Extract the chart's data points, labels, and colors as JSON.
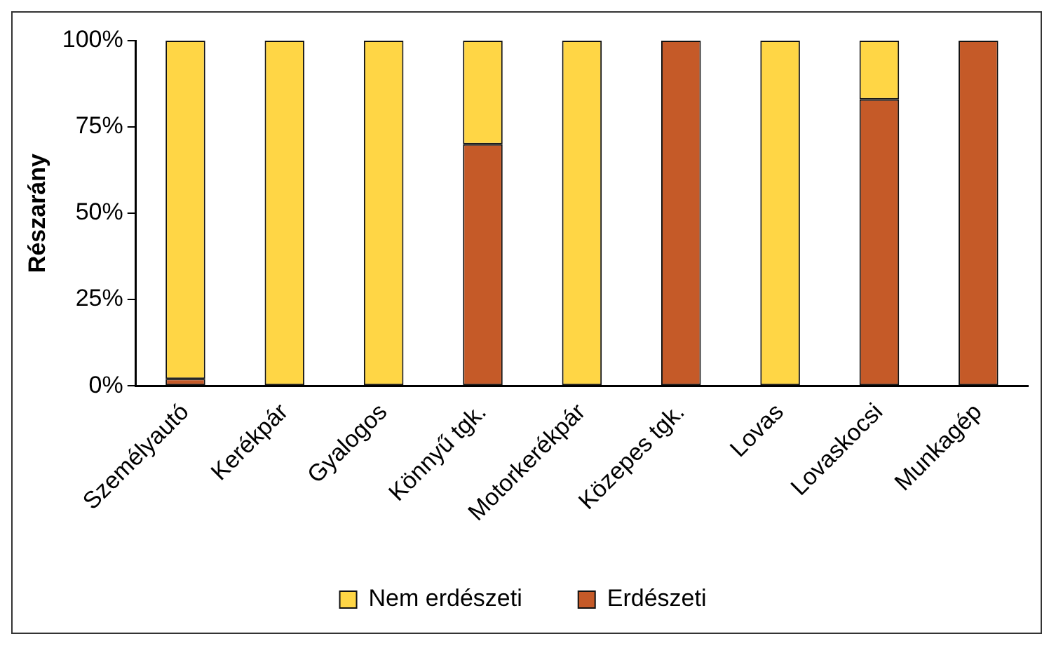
{
  "chart_data": {
    "type": "bar",
    "stacked": true,
    "ylabel": "Részarány",
    "categories": [
      "Személyautó",
      "Kerékpár",
      "Gyalogos",
      "Könnyű tgk.",
      "Motorkerékpár",
      "Közepes tgk.",
      "Lovas",
      "Lovaskocsi",
      "Munkagép"
    ],
    "series": [
      {
        "name": "Erdészeti",
        "color": "#c55a28",
        "values": [
          2,
          0,
          0,
          70,
          0,
          100,
          0,
          83,
          100
        ]
      },
      {
        "name": "Nem erdészeti",
        "color": "#ffd645",
        "values": [
          98,
          100,
          100,
          30,
          100,
          0,
          100,
          17,
          0
        ]
      }
    ],
    "ylim": [
      0,
      100
    ],
    "yticks": [
      {
        "value": 0,
        "label": "0%"
      },
      {
        "value": 25,
        "label": "25%"
      },
      {
        "value": 50,
        "label": "50%"
      },
      {
        "value": 75,
        "label": "75%"
      },
      {
        "value": 100,
        "label": "100%"
      }
    ],
    "grid": false,
    "legend": "bottom"
  }
}
